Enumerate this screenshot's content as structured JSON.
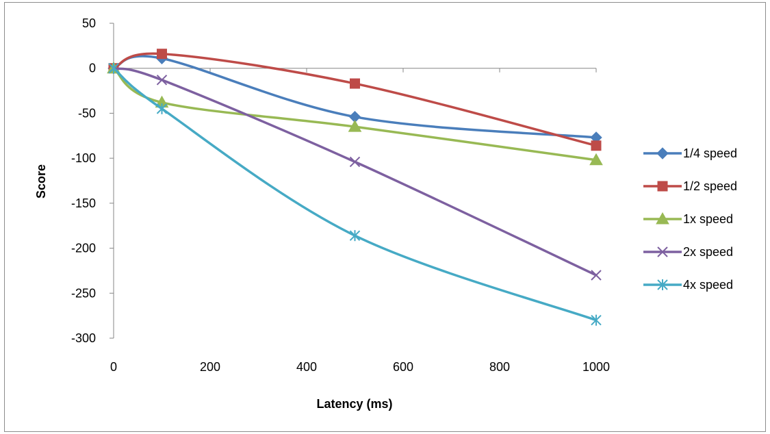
{
  "chart_data": {
    "type": "line",
    "title": "",
    "xlabel": "Latency (ms)",
    "ylabel": "Score",
    "x": [
      0,
      100,
      500,
      1000
    ],
    "xlim": [
      0,
      1000
    ],
    "ylim": [
      -300,
      50
    ],
    "x_ticks": [
      "0",
      "200",
      "400",
      "600",
      "800",
      "1000"
    ],
    "y_ticks": [
      "50",
      "0",
      "-50",
      "-100",
      "-150",
      "-200",
      "-250",
      "-300"
    ],
    "smoothed": true,
    "grid": false,
    "legend_position": "right",
    "series": [
      {
        "name": "1/4 speed",
        "values": [
          0,
          11,
          -54,
          -77
        ],
        "color": "#4a7ebb",
        "marker": "diamond"
      },
      {
        "name": "1/2 speed",
        "values": [
          0,
          16,
          -17,
          -86
        ],
        "color": "#be4b48",
        "marker": "square"
      },
      {
        "name": "1x speed",
        "values": [
          0,
          -38,
          -65,
          -102
        ],
        "color": "#98b954",
        "marker": "triangle"
      },
      {
        "name": "2x speed",
        "values": [
          0,
          -13,
          -104,
          -230
        ],
        "color": "#7d60a0",
        "marker": "x"
      },
      {
        "name": "4x speed",
        "values": [
          0,
          -45,
          -186,
          -280
        ],
        "color": "#46aac5",
        "marker": "star"
      }
    ]
  }
}
